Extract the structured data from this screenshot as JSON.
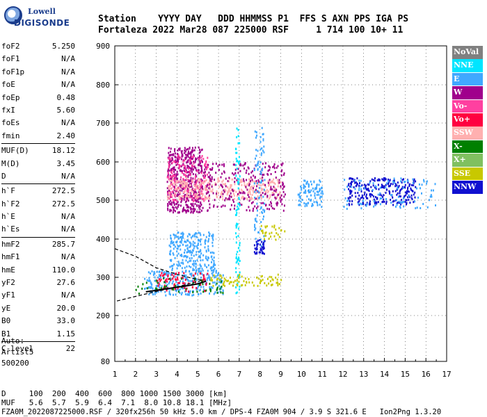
{
  "logo": {
    "line1": "Lowell",
    "line2": "DIGISONDE"
  },
  "header": {
    "line1": "Station    YYYY DAY   DDD HHMMSS P1  FFS S AXN PPS IGA PS",
    "line2": "Fortaleza 2022 Mar28 087 225000 RSF     1 714 100 10+ 11"
  },
  "params": [
    [
      {
        "label": "foF2",
        "value": "5.250"
      },
      {
        "label": "foF1",
        "value": "N/A"
      },
      {
        "label": "foF1p",
        "value": "N/A"
      },
      {
        "label": "foE",
        "value": "N/A"
      },
      {
        "label": "foEp",
        "value": "0.48"
      },
      {
        "label": "fxI",
        "value": "5.60"
      },
      {
        "label": "foEs",
        "value": "N/A"
      },
      {
        "label": "fmin",
        "value": "2.40"
      }
    ],
    [
      {
        "label": "MUF(D)",
        "value": "18.12"
      },
      {
        "label": "M(D)",
        "value": "3.45"
      },
      {
        "label": "D",
        "value": "N/A"
      }
    ],
    [
      {
        "label": "h`F",
        "value": "272.5"
      },
      {
        "label": "h`F2",
        "value": "272.5"
      },
      {
        "label": "h`E",
        "value": "N/A"
      },
      {
        "label": "h`Es",
        "value": "N/A"
      }
    ],
    [
      {
        "label": "hmF2",
        "value": "285.7"
      },
      {
        "label": "hmF1",
        "value": "N/A"
      },
      {
        "label": "hmE",
        "value": "110.0"
      },
      {
        "label": "yF2",
        "value": "27.6"
      },
      {
        "label": "yF1",
        "value": "N/A"
      },
      {
        "label": "yE",
        "value": "20.0"
      },
      {
        "label": "B0",
        "value": "33.0"
      },
      {
        "label": "B1",
        "value": "1.15"
      }
    ],
    [
      {
        "label": "C-level",
        "value": "22"
      }
    ]
  ],
  "auto": [
    "Auto:",
    "Artist5",
    "500200"
  ],
  "legend": [
    {
      "label": "NoVal",
      "color": "#808080"
    },
    {
      "label": "NNE",
      "color": "#00e5ff"
    },
    {
      "label": "E",
      "color": "#40a8ff"
    },
    {
      "label": "W",
      "color": "#a0008c"
    },
    {
      "label": "Vo-",
      "color": "#ff40a0"
    },
    {
      "label": "Vo+",
      "color": "#ff0040"
    },
    {
      "label": "SSW",
      "color": "#ffb0b0"
    },
    {
      "label": "X-",
      "color": "#008000"
    },
    {
      "label": "X+",
      "color": "#80c060"
    },
    {
      "label": "SSE",
      "color": "#c8c800"
    },
    {
      "label": "NNW",
      "color": "#1010d0"
    }
  ],
  "chart_data": {
    "type": "scatter",
    "title": "",
    "xlabel": "",
    "ylabel": "",
    "xlim": [
      1,
      17
    ],
    "ylim": [
      80,
      900
    ],
    "xticks": [
      "1",
      "2",
      "3",
      "4",
      "5",
      "6",
      "7",
      "8",
      "9",
      "10",
      "11",
      "12",
      "13",
      "14",
      "15",
      "16",
      "17"
    ],
    "yticks": [
      "80",
      "200",
      "300",
      "400",
      "500",
      "600",
      "700",
      "800",
      "900"
    ],
    "grid": "dotted",
    "y_scale": "piecewise (80-200 compressed)",
    "clusters": [
      {
        "name": "W",
        "x": [
          3.5,
          5.2
        ],
        "y": [
          470,
          640
        ],
        "n": 500
      },
      {
        "name": "Vo-",
        "x": [
          3.5,
          5.5
        ],
        "y": [
          500,
          620
        ],
        "n": 180
      },
      {
        "name": "SSW",
        "x": [
          3.5,
          9.0
        ],
        "y": [
          505,
          560
        ],
        "n": 350
      },
      {
        "name": "W",
        "x": [
          5.2,
          9.2
        ],
        "y": [
          475,
          600
        ],
        "n": 260
      },
      {
        "name": "E",
        "x": [
          3.6,
          5.8
        ],
        "y": [
          320,
          420
        ],
        "n": 260
      },
      {
        "name": "E",
        "x": [
          2.4,
          6.2
        ],
        "y": [
          255,
          320
        ],
        "n": 260
      },
      {
        "name": "Vo+",
        "x": [
          3.0,
          5.5
        ],
        "y": [
          265,
          315
        ],
        "n": 80
      },
      {
        "name": "NNE",
        "x": [
          6.8,
          7.0
        ],
        "y": [
          260,
          690
        ],
        "n": 80
      },
      {
        "name": "E",
        "x": [
          7.7,
          8.2
        ],
        "y": [
          380,
          690
        ],
        "n": 90
      },
      {
        "name": "NNW",
        "x": [
          7.7,
          8.2
        ],
        "y": [
          360,
          400
        ],
        "n": 40
      },
      {
        "name": "SSE",
        "x": [
          5.6,
          9.0
        ],
        "y": [
          280,
          310
        ],
        "n": 80
      },
      {
        "name": "SSE",
        "x": [
          8.0,
          9.2
        ],
        "y": [
          400,
          440
        ],
        "n": 30
      },
      {
        "name": "E",
        "x": [
          9.8,
          11.0
        ],
        "y": [
          485,
          555
        ],
        "n": 100
      },
      {
        "name": "NNW",
        "x": [
          12.2,
          15.5
        ],
        "y": [
          490,
          560
        ],
        "n": 260
      },
      {
        "name": "E",
        "x": [
          12.0,
          16.5
        ],
        "y": [
          480,
          560
        ],
        "n": 100
      },
      {
        "name": "X-",
        "x": [
          1.8,
          6.2
        ],
        "y": [
          260,
          300
        ],
        "n": 50
      }
    ],
    "trace_solid": {
      "x": [
        2.5,
        3.0,
        3.5,
        4.0,
        4.5,
        5.0,
        5.4
      ],
      "y": [
        262,
        266,
        270,
        274,
        278,
        283,
        290
      ]
    },
    "trace_dashed_upper": {
      "x": [
        1.0,
        2.0,
        3.0,
        4.0,
        4.7,
        5.3
      ],
      "y": [
        375,
        355,
        325,
        308,
        298,
        292
      ]
    },
    "trace_dashed_lower": {
      "x": [
        1.1,
        2.0,
        3.0,
        3.8,
        4.5,
        5.2
      ],
      "y": [
        238,
        250,
        263,
        272,
        282,
        292
      ]
    }
  },
  "bottom": {
    "line1": "D     100  200  400  600  800 1000 1500 3000 [km]",
    "line2": "MUF   5.6  5.7  5.9  6.4  7.1  8.0 10.8 18.1 [MHz]",
    "line3": "FZA0M_2022087225000.RSF / 320fx256h 50 kHz 5.0 km / DPS-4 FZA0M 904 / 3.9 S 321.6 E   Ion2Png 1.3.20"
  }
}
